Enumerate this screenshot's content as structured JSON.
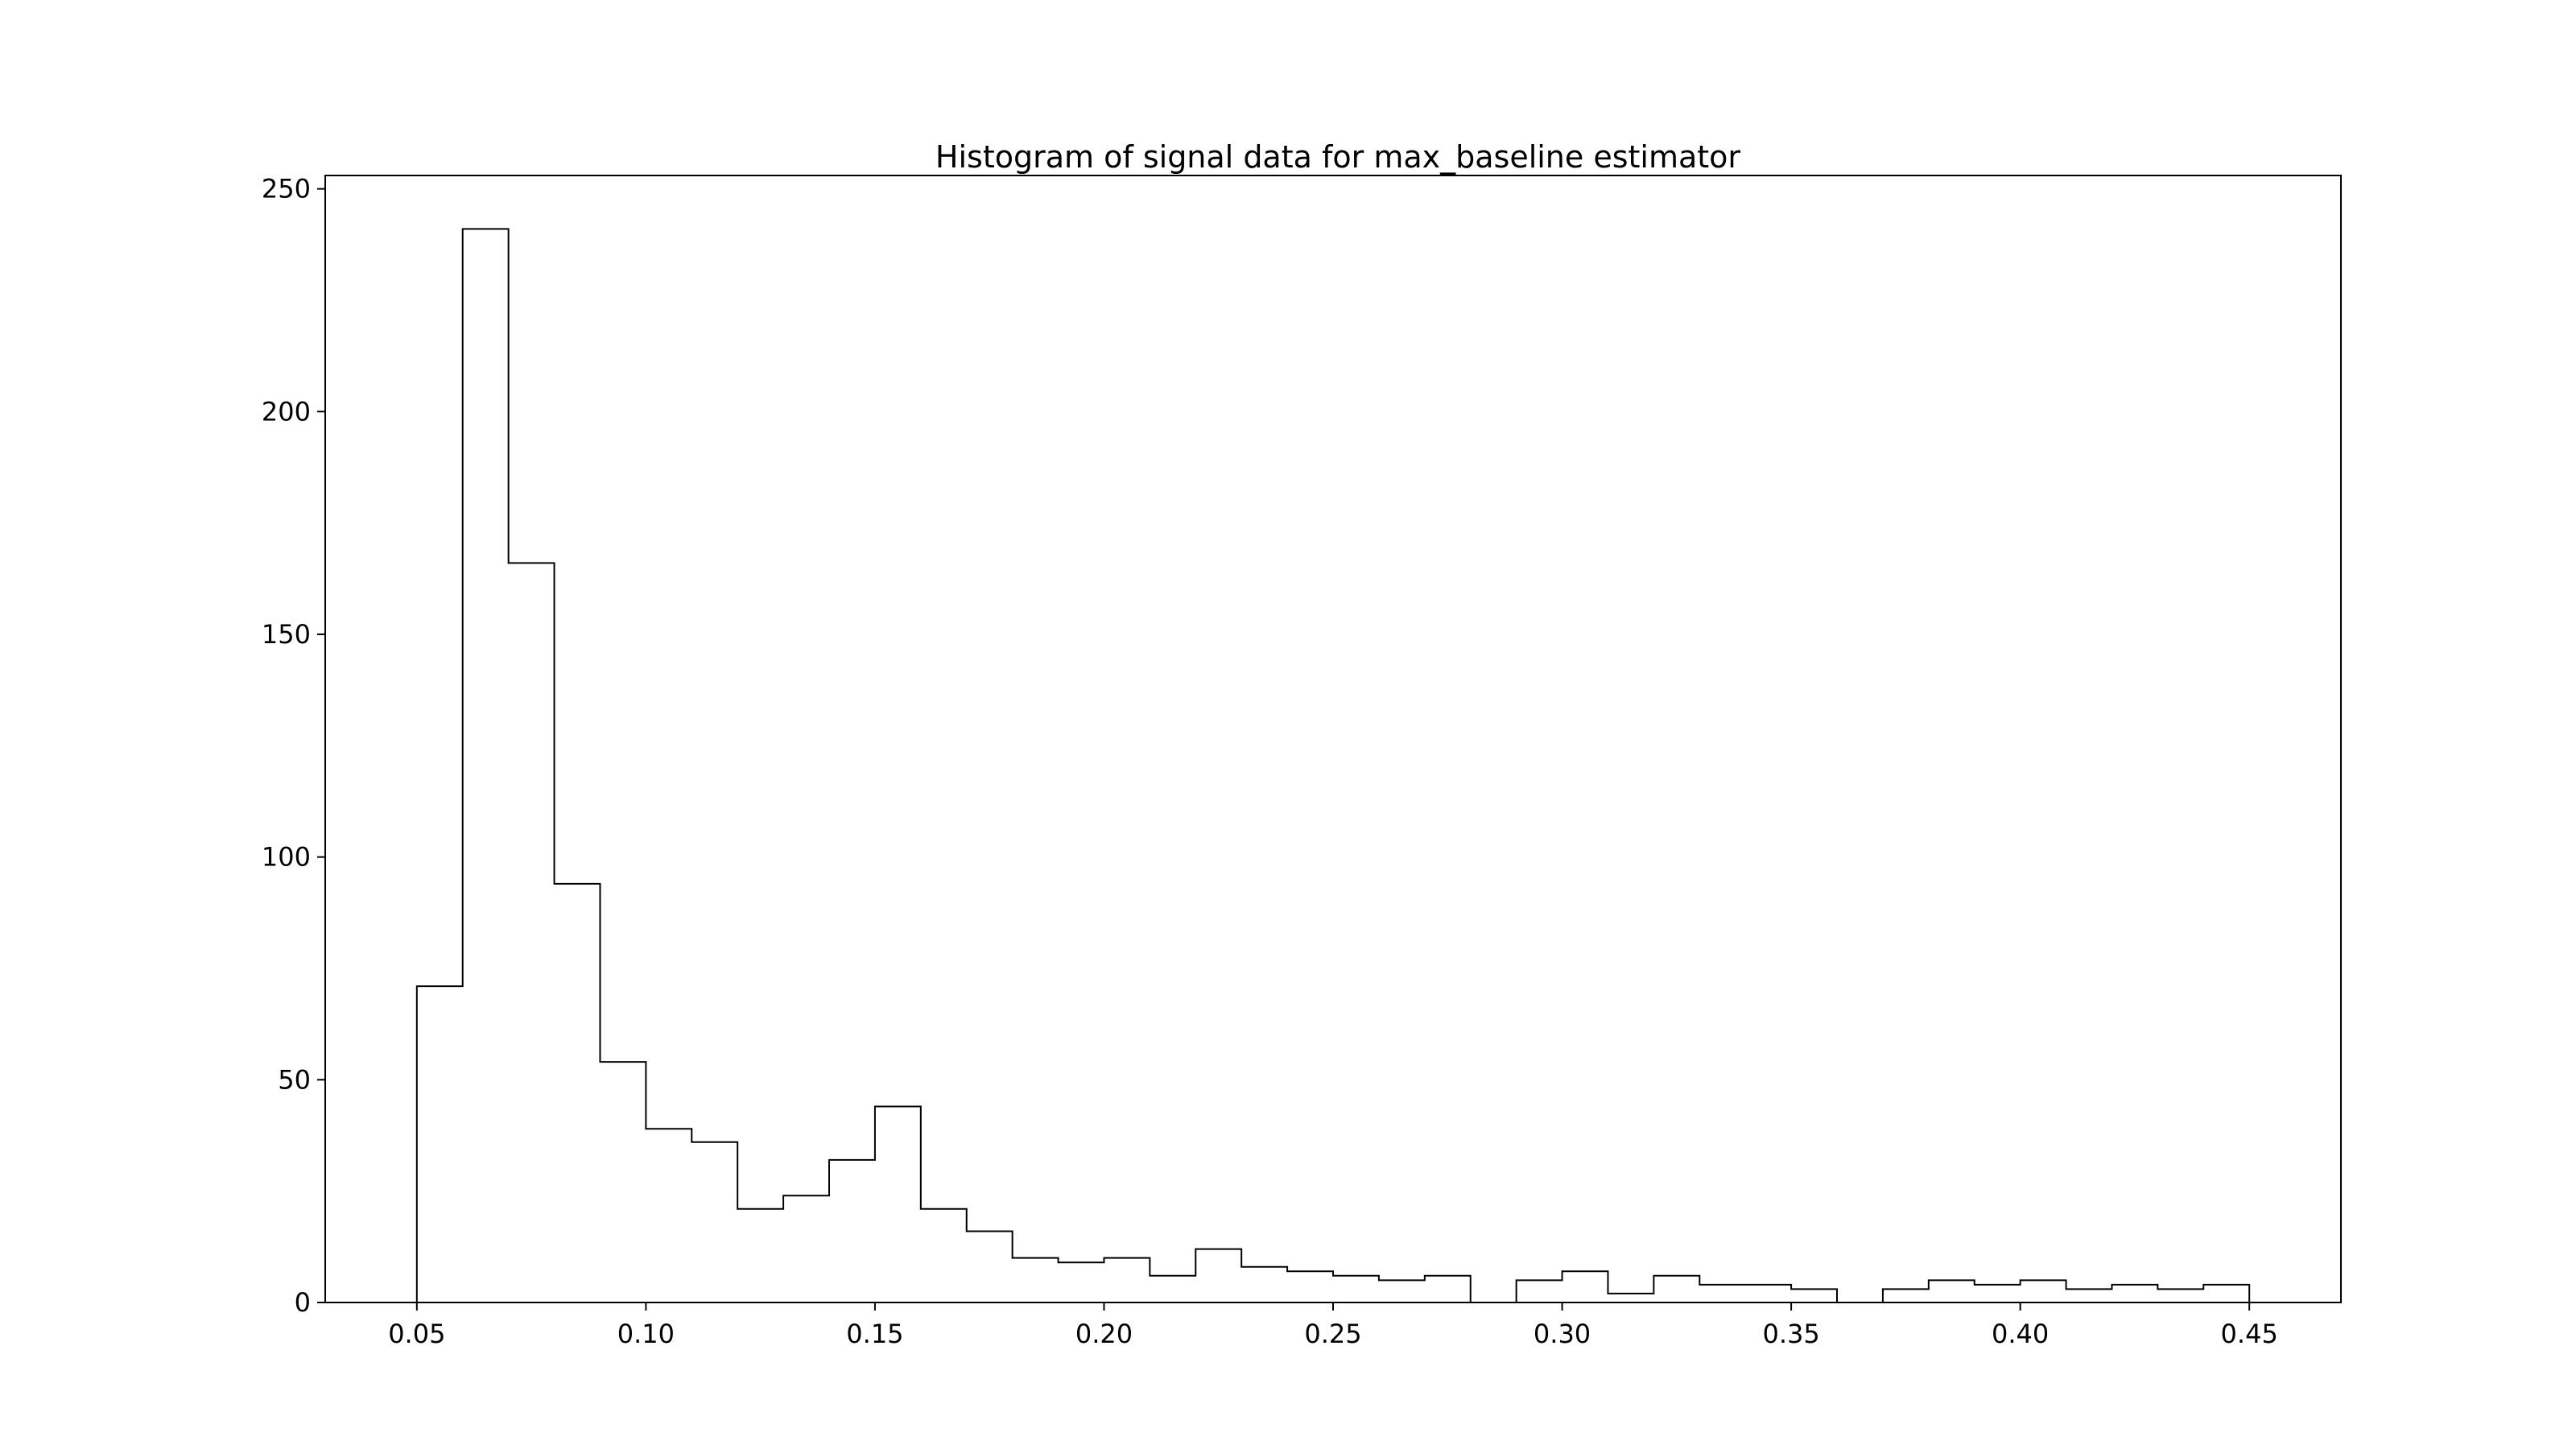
{
  "chart_data": {
    "type": "histogram",
    "title": "Histogram of signal data for max_baseline estimator",
    "xlabel": "",
    "ylabel": "",
    "histtype": "step",
    "bin_start": 0.05,
    "bin_width": 0.01,
    "bin_edges": [
      0.05,
      0.06,
      0.07,
      0.08,
      0.09,
      0.1,
      0.11,
      0.12,
      0.13,
      0.14,
      0.15,
      0.16,
      0.17,
      0.18,
      0.19,
      0.2,
      0.21,
      0.22,
      0.23,
      0.24,
      0.25,
      0.26,
      0.27,
      0.28,
      0.29,
      0.3,
      0.31,
      0.32,
      0.33,
      0.34,
      0.35,
      0.36,
      0.37,
      0.38,
      0.39,
      0.4,
      0.41,
      0.42,
      0.43,
      0.44,
      0.45
    ],
    "counts": [
      71,
      241,
      166,
      94,
      54,
      39,
      36,
      21,
      24,
      32,
      44,
      21,
      16,
      10,
      9,
      10,
      6,
      12,
      8,
      7,
      6,
      5,
      6,
      0,
      5,
      7,
      2,
      6,
      4,
      4,
      3,
      0,
      3,
      5,
      4,
      5,
      3,
      4,
      3,
      4
    ],
    "xlim": [
      0.03,
      0.47
    ],
    "ylim": [
      0,
      253
    ],
    "xticks": [
      0.05,
      0.1,
      0.15,
      0.2,
      0.25,
      0.3,
      0.35,
      0.4,
      0.45
    ],
    "xtick_labels": [
      "0.05",
      "0.10",
      "0.15",
      "0.20",
      "0.25",
      "0.30",
      "0.35",
      "0.40",
      "0.45"
    ],
    "yticks": [
      0,
      50,
      100,
      150,
      200,
      250
    ],
    "ytick_labels": [
      "0",
      "50",
      "100",
      "150",
      "200",
      "250"
    ],
    "grid": false,
    "legend": "none",
    "line_color": "#000000",
    "background_color": "#ffffff"
  }
}
